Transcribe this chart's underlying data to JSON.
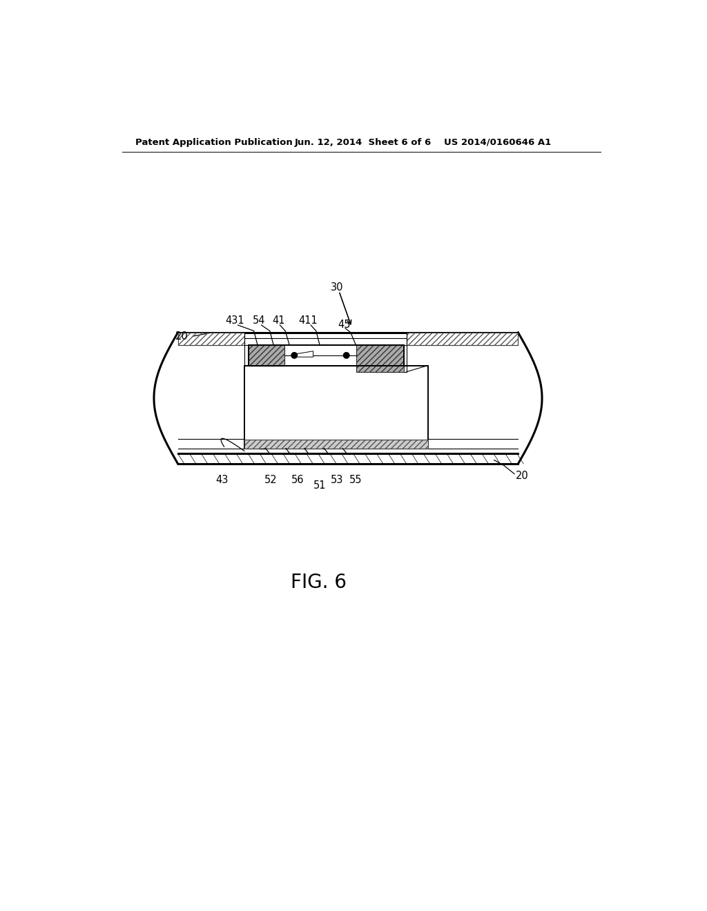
{
  "bg_color": "#ffffff",
  "lc": "#000000",
  "header_left": "Patent Application Publication",
  "header_center": "Jun. 12, 2014  Sheet 6 of 6",
  "header_right": "US 2014/0160646 A1",
  "fig_label": "FIG. 6",
  "label_fontsize": 10.5,
  "fig_label_fontsize": 20,
  "header_fontsize": 9.5
}
